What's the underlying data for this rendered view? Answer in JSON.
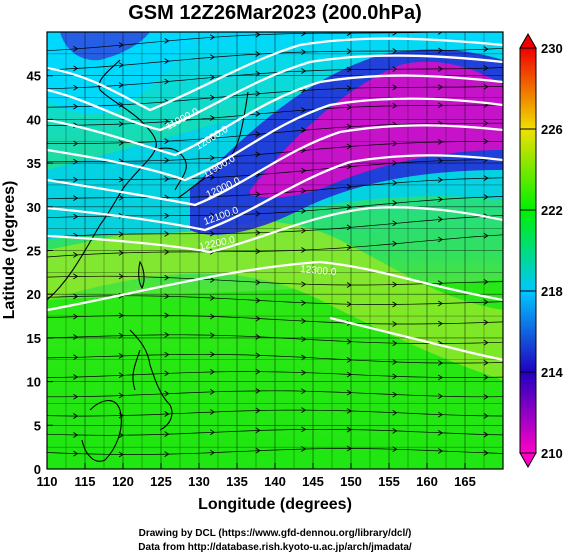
{
  "title": "GSM 12Z26Mar2023 (200.0hPa)",
  "x_axis": {
    "label": "Longitude (degrees)",
    "range": [
      110,
      170
    ],
    "ticks": [
      "110",
      "115",
      "120",
      "125",
      "130",
      "135",
      "140",
      "145",
      "150",
      "155",
      "160",
      "165"
    ]
  },
  "y_axis": {
    "label": "Latitude (degrees)",
    "range": [
      0,
      50
    ],
    "ticks": [
      "0",
      "5",
      "10",
      "15",
      "20",
      "25",
      "30",
      "35",
      "40",
      "45"
    ]
  },
  "colorbar": {
    "min": 210,
    "max": 230,
    "tick_labels": [
      "210",
      "214",
      "218",
      "222",
      "226",
      "230"
    ],
    "colors": [
      "#ff00c8",
      "#2000c0",
      "#00c8ff",
      "#00f000",
      "#f0e000",
      "#f00000"
    ]
  },
  "contour_labels": [
    "11900.0",
    "12000.0",
    "11900.0",
    "12000.0",
    "12100.0",
    "12200.0",
    "12300.0"
  ],
  "credits": {
    "line1": "Drawing by DCL (https://www.gfd-dennou.org/library/dcl/)",
    "line2": "Data from http://database.rish.kyoto-u.ac.jp/arch/jmadata/"
  }
}
